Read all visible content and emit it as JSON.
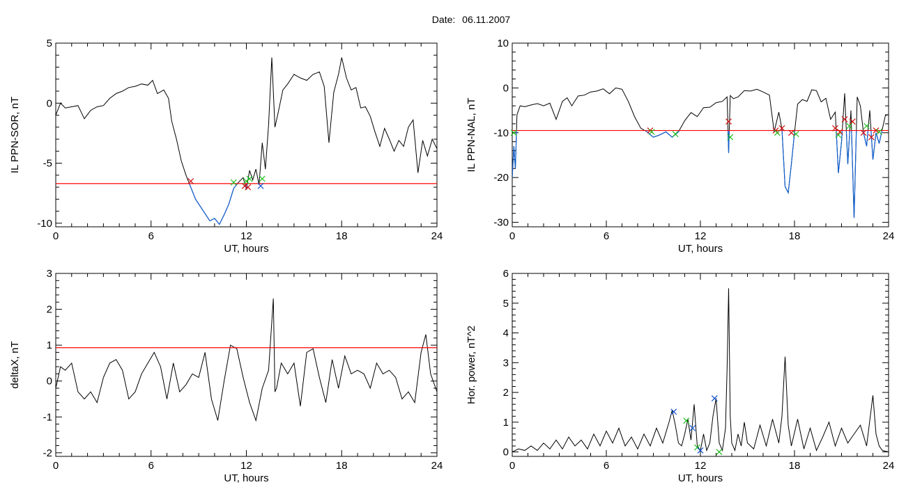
{
  "figure": {
    "date_label": "Date:",
    "date_value": "06.11.2007"
  },
  "colors": {
    "signal": "#000000",
    "below_threshold": "#1060d0",
    "threshold": "#ff0000",
    "marker_red": "#d01010",
    "marker_green": "#20c020",
    "marker_blue": "#1050d0"
  },
  "chart_data": [
    {
      "id": "ppn-sor",
      "type": "line",
      "xlabel": "UT, hours",
      "ylabel": "IL PPN-SOR, nT",
      "xlim": [
        0,
        24
      ],
      "ylim": [
        -10.3,
        5
      ],
      "xticks": [
        "0",
        "6",
        "12",
        "18",
        "24"
      ],
      "yticks": [
        "-10",
        "-5",
        "0",
        "5"
      ],
      "threshold": -6.7,
      "series": [
        {
          "x": [
            0,
            0.3,
            0.6,
            1,
            1.4,
            1.8,
            2.2,
            2.6,
            3,
            3.4,
            3.8,
            4.2,
            4.6,
            5,
            5.4,
            5.8,
            6.1,
            6.4,
            6.8,
            7.1,
            7.3,
            7.6,
            7.9,
            8.2,
            8.5,
            8.8,
            9.1,
            9.4,
            9.7,
            10,
            10.3,
            10.6,
            10.9,
            11.2,
            11.5,
            11.8,
            12,
            12.2,
            12.4,
            12.6,
            12.8,
            13,
            13.2,
            13.4,
            13.6,
            13.8,
            14,
            14.3,
            14.6,
            15,
            15.4,
            15.8,
            16.2,
            16.6,
            16.9,
            17.2,
            17.5,
            17.8,
            18,
            18.3,
            18.6,
            18.9,
            19.2,
            19.5,
            19.8,
            20.1,
            20.4,
            20.7,
            21,
            21.3,
            21.6,
            21.9,
            22.2,
            22.5,
            22.8,
            23.1,
            23.4,
            23.7,
            24
          ],
          "y": [
            -1,
            0,
            -0.4,
            -0.3,
            -0.2,
            -1.3,
            -0.6,
            -0.3,
            -0.2,
            0.4,
            0.8,
            1,
            1.3,
            1.4,
            1.6,
            1.5,
            1.9,
            0.8,
            1.1,
            0.4,
            -1.5,
            -3,
            -4.8,
            -6,
            -7,
            -8,
            -8.6,
            -9.2,
            -9.8,
            -9.6,
            -10.1,
            -9.3,
            -8.4,
            -7.1,
            -6.6,
            -6.2,
            -7.2,
            -5.6,
            -6.4,
            -5.5,
            -6.8,
            -3.3,
            -5.5,
            -1.8,
            3.8,
            -2,
            -0.8,
            1.1,
            1.6,
            2.4,
            2.1,
            1.9,
            2.4,
            2.6,
            1.4,
            -3.3,
            0.9,
            2.4,
            3.8,
            2.1,
            1.1,
            1.3,
            -0.4,
            -0.3,
            -1.1,
            -2.4,
            -3.6,
            -2.1,
            -3,
            -4,
            -3.1,
            -3.6,
            -2,
            -1.4,
            -5.8,
            -3.1,
            -4.4,
            -3,
            -3.8
          ]
        }
      ],
      "markers": [
        {
          "x": 8.5,
          "y": -6.5,
          "color": "red"
        },
        {
          "x": 11.2,
          "y": -6.6,
          "color": "green"
        },
        {
          "x": 11.9,
          "y": -6.9,
          "color": "red"
        },
        {
          "x": 12.0,
          "y": -6.5,
          "color": "green"
        },
        {
          "x": 12.1,
          "y": -7.0,
          "color": "red"
        },
        {
          "x": 12.2,
          "y": -6.3,
          "color": "green"
        },
        {
          "x": 12.9,
          "y": -6.9,
          "color": "blue"
        },
        {
          "x": 13.0,
          "y": -6.3,
          "color": "green"
        }
      ]
    },
    {
      "id": "ppn-nal",
      "type": "line",
      "xlabel": "UT, hours",
      "ylabel": "IL PPN-NAL, nT",
      "xlim": [
        0,
        24
      ],
      "ylim": [
        -31,
        10
      ],
      "xticks": [
        "0",
        "6",
        "12",
        "18",
        "24"
      ],
      "yticks": [
        "-30",
        "-20",
        "-10",
        "0",
        "10"
      ],
      "threshold": -9.5,
      "series": [
        {
          "x": [
            0,
            0.1,
            0.2,
            0.3,
            0.5,
            0.8,
            1.2,
            1.6,
            2,
            2.4,
            2.8,
            3.2,
            3.5,
            3.8,
            4.2,
            4.6,
            5,
            5.4,
            5.8,
            6.2,
            6.6,
            7,
            7.4,
            7.8,
            8.2,
            8.6,
            9,
            9.4,
            9.8,
            10.2,
            10.6,
            11,
            11.4,
            11.8,
            12.2,
            12.6,
            13,
            13.4,
            13.7,
            13.8,
            13.9,
            14.1,
            14.4,
            14.8,
            15.2,
            15.6,
            16,
            16.4,
            16.7,
            17,
            17.2,
            17.4,
            17.6,
            17.8,
            18,
            18.2,
            18.5,
            18.8,
            19.1,
            19.4,
            19.7,
            20,
            20.3,
            20.6,
            20.8,
            21,
            21.2,
            21.4,
            21.6,
            21.8,
            22,
            22.2,
            22.4,
            22.6,
            22.8,
            23,
            23.2,
            23.4,
            23.6,
            23.8,
            24
          ],
          "y": [
            -20,
            -13,
            -18,
            -6,
            -4,
            -4.2,
            -3.8,
            -3.5,
            -4,
            -3.4,
            -7,
            -3,
            -2.2,
            -4,
            -1.8,
            -1.6,
            -0.9,
            -0.7,
            -0.2,
            -1.3,
            0,
            -0.3,
            -3,
            -6.4,
            -9,
            -9.8,
            -11,
            -10.5,
            -9.8,
            -11,
            -9.8,
            -7.3,
            -5.5,
            -6.4,
            -4.4,
            -4.3,
            -3.3,
            -3,
            -2,
            -14.5,
            -1.7,
            -2.4,
            -2,
            -0.6,
            -0.7,
            -0.3,
            -0.9,
            -1.6,
            -9.8,
            -5.4,
            -9.2,
            -22,
            -23.4,
            -17,
            -10,
            -3.6,
            -2.6,
            -3,
            -0.4,
            -0.6,
            -3.1,
            -2.3,
            -7,
            -5.4,
            -19,
            -12,
            -1.2,
            -17,
            -5,
            -29,
            -2,
            -4,
            -10,
            -13,
            -5,
            -16,
            -10,
            -12.4,
            -9.2,
            -6.1,
            -6
          ]
        }
      ],
      "markers": [
        {
          "x": 0.1,
          "y": -10,
          "color": "green"
        },
        {
          "x": 8.8,
          "y": -9.5,
          "color": "red"
        },
        {
          "x": 8.9,
          "y": -9.8,
          "color": "green"
        },
        {
          "x": 10.4,
          "y": -10.3,
          "color": "green"
        },
        {
          "x": 13.8,
          "y": -7.5,
          "color": "red"
        },
        {
          "x": 13.9,
          "y": -11,
          "color": "green"
        },
        {
          "x": 16.8,
          "y": -9.5,
          "color": "red"
        },
        {
          "x": 16.9,
          "y": -10,
          "color": "green"
        },
        {
          "x": 17.2,
          "y": -9,
          "color": "red"
        },
        {
          "x": 17.8,
          "y": -10,
          "color": "red"
        },
        {
          "x": 18.1,
          "y": -10.3,
          "color": "green"
        },
        {
          "x": 20.6,
          "y": -9,
          "color": "red"
        },
        {
          "x": 20.8,
          "y": -10.5,
          "color": "green"
        },
        {
          "x": 20.9,
          "y": -9.8,
          "color": "red"
        },
        {
          "x": 21.2,
          "y": -7,
          "color": "red"
        },
        {
          "x": 21.5,
          "y": -8.5,
          "color": "green"
        },
        {
          "x": 21.7,
          "y": -7.5,
          "color": "red"
        },
        {
          "x": 22.4,
          "y": -10,
          "color": "red"
        },
        {
          "x": 22.6,
          "y": -8.5,
          "color": "green"
        },
        {
          "x": 22.9,
          "y": -11,
          "color": "red"
        },
        {
          "x": 23.2,
          "y": -9.5,
          "color": "red"
        },
        {
          "x": 23.4,
          "y": -9.8,
          "color": "green"
        }
      ]
    },
    {
      "id": "deltax",
      "type": "line",
      "xlabel": "UT, hours",
      "ylabel": "deltaX, nT",
      "xlim": [
        0,
        24
      ],
      "ylim": [
        -2.1,
        3
      ],
      "xticks": [
        "0",
        "6",
        "12",
        "18",
        "24"
      ],
      "yticks": [
        "-2",
        "-1",
        "0",
        "1",
        "2",
        "3"
      ],
      "threshold": 0.93,
      "series": [
        {
          "x": [
            0,
            0.3,
            0.6,
            1,
            1.4,
            1.8,
            2.2,
            2.6,
            3,
            3.4,
            3.8,
            4.2,
            4.6,
            5,
            5.4,
            5.8,
            6.2,
            6.6,
            7,
            7.4,
            7.8,
            8.2,
            8.6,
            9,
            9.4,
            9.8,
            10.2,
            10.6,
            11,
            11.4,
            11.8,
            12.2,
            12.6,
            13,
            13.4,
            13.7,
            13.8,
            13.9,
            14.2,
            14.6,
            15,
            15.4,
            15.8,
            16.2,
            16.6,
            17,
            17.4,
            17.8,
            18.2,
            18.6,
            19,
            19.4,
            19.8,
            20.2,
            20.6,
            21,
            21.4,
            21.8,
            22.2,
            22.6,
            23,
            23.3,
            23.6,
            24
          ],
          "y": [
            -0.2,
            0.4,
            0.3,
            0.5,
            -0.3,
            -0.5,
            -0.3,
            -0.6,
            0.1,
            0.5,
            0.6,
            0.3,
            -0.5,
            -0.3,
            0.2,
            0.5,
            0.8,
            0.4,
            -0.5,
            0.5,
            -0.3,
            -0.1,
            0.2,
            0.1,
            0.8,
            -0.5,
            -1.1,
            0,
            1,
            0.9,
            0.1,
            -0.6,
            -1.1,
            -0.2,
            0.3,
            2.3,
            -0.3,
            -0.2,
            0.5,
            0.2,
            0.5,
            -0.7,
            0.8,
            0.9,
            0.1,
            -0.6,
            0.6,
            -0.2,
            0.7,
            0.2,
            0.3,
            0.2,
            -0.2,
            0.5,
            0.2,
            0.3,
            0.1,
            -0.5,
            -0.3,
            -0.6,
            0.8,
            1.3,
            0.2,
            -0.3
          ]
        }
      ]
    },
    {
      "id": "hor-power",
      "type": "line",
      "xlabel": "UT, hours",
      "ylabel": "Hor. power, nT^2",
      "xlim": [
        0,
        24
      ],
      "ylim": [
        -0.15,
        6
      ],
      "xticks": [
        "0",
        "6",
        "12",
        "18",
        "24"
      ],
      "yticks": [
        "0",
        "1",
        "2",
        "3",
        "4",
        "5",
        "6"
      ],
      "series": [
        {
          "x": [
            0,
            0.4,
            0.8,
            1.2,
            1.6,
            2,
            2.4,
            2.8,
            3.2,
            3.6,
            4,
            4.4,
            4.8,
            5.2,
            5.6,
            6,
            6.4,
            6.8,
            7.2,
            7.6,
            8,
            8.4,
            8.8,
            9.2,
            9.6,
            10,
            10.2,
            10.4,
            10.6,
            10.8,
            11,
            11.2,
            11.4,
            11.6,
            11.8,
            12,
            12.2,
            12.4,
            12.6,
            12.8,
            13,
            13.2,
            13.4,
            13.6,
            13.7,
            13.8,
            13.9,
            14,
            14.2,
            14.4,
            14.6,
            14.8,
            15,
            15.4,
            15.8,
            16.2,
            16.6,
            17,
            17.2,
            17.4,
            17.6,
            17.8,
            18.2,
            18.6,
            19,
            19.4,
            19.8,
            20.2,
            20.6,
            21,
            21.4,
            21.8,
            22.2,
            22.6,
            23,
            23.2,
            23.4,
            23.6,
            24
          ],
          "y": [
            0,
            0.1,
            0.05,
            0.2,
            0.05,
            0.3,
            0.1,
            0.4,
            0.1,
            0.5,
            0.2,
            0.4,
            0.1,
            0.6,
            0.2,
            0.7,
            0.3,
            0.8,
            0.2,
            0.5,
            0.1,
            0.6,
            0.2,
            0.8,
            0.3,
            1,
            1.4,
            0.9,
            0.3,
            0.2,
            0.6,
            1.1,
            0.4,
            1.6,
            0.2,
            0.05,
            0.6,
            0.05,
            0.3,
            1.2,
            1.8,
            0.3,
            0.05,
            0.8,
            2.8,
            5.5,
            1.2,
            0.3,
            0.05,
            0.6,
            0.2,
            1,
            0.3,
            0.1,
            0.9,
            0.2,
            1.1,
            0.3,
            1.2,
            3.2,
            0.9,
            0.2,
            1.1,
            0.1,
            0.8,
            0.05,
            0.5,
            1,
            0.2,
            0.8,
            0.3,
            0.6,
            0.9,
            0.2,
            1.9,
            0.6,
            0.2,
            0.05,
            0
          ]
        }
      ],
      "markers": [
        {
          "x": 10.3,
          "y": 1.35,
          "color": "blue"
        },
        {
          "x": 11.1,
          "y": 1.05,
          "color": "green"
        },
        {
          "x": 11.5,
          "y": 0.8,
          "color": "blue"
        },
        {
          "x": 11.8,
          "y": 0.15,
          "color": "green"
        },
        {
          "x": 12.0,
          "y": 0.05,
          "color": "blue"
        },
        {
          "x": 12.9,
          "y": 1.8,
          "color": "blue"
        },
        {
          "x": 13.2,
          "y": 0.0,
          "color": "green"
        }
      ]
    }
  ]
}
